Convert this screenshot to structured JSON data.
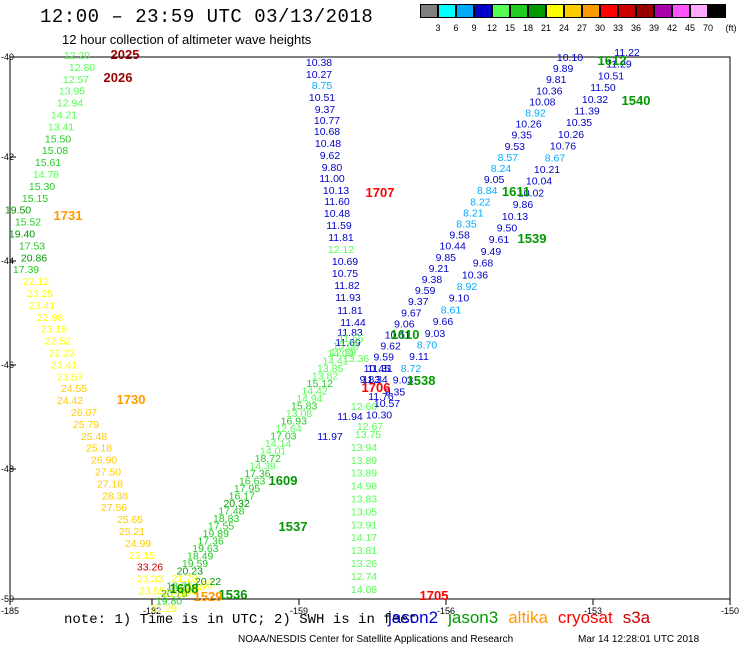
{
  "title": "12:00 – 23:59 UTC 03/13/2018",
  "subtitle": "12 hour collection of altimeter wave heights",
  "scale": {
    "unit": "(ft)",
    "swatches": [
      {
        "c": "#7f7f7f",
        "l": "3"
      },
      {
        "c": "#00ffff",
        "l": "6"
      },
      {
        "c": "#00aaff",
        "l": "9"
      },
      {
        "c": "#0000c8",
        "l": "12"
      },
      {
        "c": "#55ff55",
        "l": "15"
      },
      {
        "c": "#22cc22",
        "l": "18"
      },
      {
        "c": "#009900",
        "l": "21"
      },
      {
        "c": "#ffff00",
        "l": "24"
      },
      {
        "c": "#ffcc00",
        "l": "27"
      },
      {
        "c": "#ff9900",
        "l": "30"
      },
      {
        "c": "#ff0000",
        "l": "33"
      },
      {
        "c": "#cc0000",
        "l": "36"
      },
      {
        "c": "#990000",
        "l": "39"
      },
      {
        "c": "#aa00aa",
        "l": "42"
      },
      {
        "c": "#ff55ff",
        "l": "45"
      },
      {
        "c": "#ffaaff",
        "l": "70"
      },
      {
        "c": "#000000",
        "l": ""
      }
    ]
  },
  "axes": {
    "lon_ticks": [
      "-185",
      "-182",
      "-159",
      "-156",
      "-153",
      "-150"
    ],
    "lat_ticks": [
      "-40",
      "-42",
      "-44",
      "-46",
      "-48",
      "-50"
    ]
  },
  "note": "note: 1) Time is in UTC; 2) SWH is in feet",
  "legend": [
    {
      "name": "jason2",
      "color": "#0000cc"
    },
    {
      "name": "jason3",
      "color": "#009900"
    },
    {
      "name": "altika",
      "color": "#ff9900"
    },
    {
      "name": "cryosat",
      "color": "#ff0000"
    },
    {
      "name": "s3a",
      "color": "#cc0000"
    }
  ],
  "footer": "NOAA/NESDIS Center for Satellite Applications and Research",
  "footer_timestamp": "Mar 14 12:28:01 UTC 2018",
  "tracks": [
    {
      "id": "left-swath",
      "c": [
        [
          "12.20",
          "#55ff55"
        ],
        [
          "12.80",
          "#55ff55"
        ],
        [
          "12.57",
          "#55ff55"
        ],
        [
          "13.95",
          "#55ff55"
        ],
        [
          "12.94",
          "#55ff55"
        ],
        [
          "14.21",
          "#55ff55"
        ],
        [
          "13.41",
          "#55ff55"
        ],
        [
          "15.50",
          "#22cc22"
        ],
        [
          "15.08",
          "#22cc22"
        ],
        [
          "15.61",
          "#22cc22"
        ],
        [
          "14.78",
          "#55ff55"
        ],
        [
          "15.30",
          "#22cc22"
        ],
        [
          "15.15",
          "#22cc22"
        ],
        [
          "19.50",
          "#009900"
        ],
        [
          "15.52",
          "#22cc22"
        ],
        [
          "19.40",
          "#009900"
        ],
        [
          "17.53",
          "#22cc22"
        ],
        [
          "20.86",
          "#009900"
        ],
        [
          "17.39",
          "#22cc22"
        ],
        [
          "22.12",
          "#ffff00"
        ],
        [
          "23.25",
          "#ffff00"
        ],
        [
          "23.41",
          "#ffff00"
        ],
        [
          "22.98",
          "#ffff00"
        ],
        [
          "23.19",
          "#ffff00"
        ],
        [
          "22.52",
          "#ffff00"
        ],
        [
          "22.23",
          "#ffff00"
        ],
        [
          "23.41",
          "#ffff00"
        ],
        [
          "23.57",
          "#ffff00"
        ],
        [
          "24.55",
          "#ffcc00"
        ],
        [
          "24.42",
          "#ffcc00"
        ],
        [
          "26.07",
          "#ffcc00"
        ],
        [
          "25.79",
          "#ffcc00"
        ],
        [
          "25.48",
          "#ffcc00"
        ],
        [
          "25.18",
          "#ffcc00"
        ],
        [
          "26.90",
          "#ffcc00"
        ],
        [
          "27.50",
          "#ffcc00"
        ],
        [
          "27.18",
          "#ffcc00"
        ],
        [
          "28.38",
          "#ffcc00"
        ],
        [
          "27.56",
          "#ffcc00"
        ],
        [
          "25.65",
          "#ffcc00"
        ],
        [
          "25.21",
          "#ffcc00"
        ],
        [
          "24.99",
          "#ffcc00"
        ],
        [
          "23.15",
          "#ffff00"
        ],
        [
          "33.26",
          "#cc0000"
        ],
        [
          "23.33",
          "#ffff00"
        ],
        [
          "23.55",
          "#ffff00"
        ]
      ]
    },
    {
      "id": "blue-track-a",
      "c": [
        [
          "10.38",
          "#0000c8"
        ],
        [
          "10.27",
          "#0000c8"
        ],
        [
          "8.75",
          "#00aaff"
        ],
        [
          "10.51",
          "#0000c8"
        ],
        [
          "9.37",
          "#0000c8"
        ],
        [
          "10.77",
          "#0000c8"
        ],
        [
          "10.68",
          "#0000c8"
        ],
        [
          "10.48",
          "#0000c8"
        ],
        [
          "9.62",
          "#0000c8"
        ],
        [
          "9.80",
          "#0000c8"
        ],
        [
          "11.00",
          "#0000c8"
        ],
        [
          "10.13",
          "#0000c8"
        ],
        [
          "11.60",
          "#0000c8"
        ],
        [
          "10.48",
          "#0000c8"
        ],
        [
          "11.59",
          "#0000c8"
        ],
        [
          "11.81",
          "#0000c8"
        ],
        [
          "12.12",
          "#55ff55"
        ],
        [
          "10.69",
          "#0000c8"
        ],
        [
          "10.75",
          "#0000c8"
        ],
        [
          "11.82",
          "#0000c8"
        ],
        [
          "11.93",
          "#0000c8"
        ],
        [
          "11.81",
          "#0000c8"
        ],
        [
          "11.44",
          "#0000c8"
        ],
        [
          "11.83",
          "#0000c8"
        ],
        [
          "11.69",
          "#0000c8"
        ],
        [
          "12.59",
          "#55ff55"
        ],
        [
          "13.36",
          "#55ff55"
        ],
        [
          "11.31",
          "#0000c8"
        ],
        [
          "11.34",
          "#0000c8"
        ],
        [
          "11.76",
          "#0000c8"
        ],
        [
          "12.60",
          "#55ff55"
        ],
        [
          "11.94",
          "#0000c8"
        ],
        [
          "12.67",
          "#55ff55"
        ],
        [
          "11.97",
          "#0000c8"
        ]
      ]
    },
    {
      "id": "green-track",
      "c": [
        [
          "13.75",
          "#55ff55"
        ],
        [
          "13.94",
          "#55ff55"
        ],
        [
          "13.89",
          "#55ff55"
        ],
        [
          "13.89",
          "#55ff55"
        ],
        [
          "14.98",
          "#55ff55"
        ],
        [
          "13.83",
          "#55ff55"
        ],
        [
          "13.05",
          "#55ff55"
        ],
        [
          "13.91",
          "#55ff55"
        ],
        [
          "14.17",
          "#55ff55"
        ],
        [
          "13.81",
          "#55ff55"
        ],
        [
          "13.26",
          "#55ff55"
        ],
        [
          "12.74",
          "#55ff55"
        ],
        [
          "14.08",
          "#55ff55"
        ]
      ]
    },
    {
      "id": "diag-1",
      "c": [
        [
          "10.10",
          "#0000c8"
        ],
        [
          "9.89",
          "#0000c8"
        ],
        [
          "9.81",
          "#0000c8"
        ],
        [
          "10.36",
          "#0000c8"
        ],
        [
          "10.08",
          "#0000c8"
        ],
        [
          "8.92",
          "#00aaff"
        ],
        [
          "10.26",
          "#0000c8"
        ],
        [
          "9.35",
          "#0000c8"
        ],
        [
          "9.53",
          "#0000c8"
        ],
        [
          "8.57",
          "#00aaff"
        ],
        [
          "8.24",
          "#00aaff"
        ],
        [
          "9.05",
          "#0000c8"
        ],
        [
          "8.84",
          "#00aaff"
        ],
        [
          "8.22",
          "#00aaff"
        ],
        [
          "8.21",
          "#00aaff"
        ],
        [
          "8.35",
          "#00aaff"
        ],
        [
          "9.58",
          "#0000c8"
        ],
        [
          "10.44",
          "#0000c8"
        ],
        [
          "9.85",
          "#0000c8"
        ],
        [
          "9.21",
          "#0000c8"
        ],
        [
          "9.38",
          "#0000c8"
        ],
        [
          "9.59",
          "#0000c8"
        ],
        [
          "9.37",
          "#0000c8"
        ],
        [
          "9.67",
          "#0000c8"
        ],
        [
          "9.06",
          "#0000c8"
        ],
        [
          "10.11",
          "#0000c8"
        ],
        [
          "9.62",
          "#0000c8"
        ],
        [
          "9.59",
          "#0000c8"
        ],
        [
          "10.45",
          "#0000c8"
        ],
        [
          "9.83",
          "#0000c8"
        ]
      ]
    },
    {
      "id": "diag-2",
      "c": [
        [
          "11.22",
          "#0000c8"
        ],
        [
          "11.29",
          "#0000c8"
        ],
        [
          "10.51",
          "#0000c8"
        ],
        [
          "11.50",
          "#0000c8"
        ],
        [
          "10.32",
          "#0000c8"
        ],
        [
          "11.39",
          "#0000c8"
        ],
        [
          "10.35",
          "#0000c8"
        ],
        [
          "10.26",
          "#0000c8"
        ],
        [
          "10.76",
          "#0000c8"
        ],
        [
          "8.67",
          "#00aaff"
        ],
        [
          "10.21",
          "#0000c8"
        ],
        [
          "10.04",
          "#0000c8"
        ],
        [
          "10.02",
          "#0000c8"
        ],
        [
          "9.86",
          "#0000c8"
        ],
        [
          "10.13",
          "#0000c8"
        ],
        [
          "9.50",
          "#0000c8"
        ],
        [
          "9.61",
          "#0000c8"
        ],
        [
          "9.49",
          "#0000c8"
        ],
        [
          "9.68",
          "#0000c8"
        ],
        [
          "10.36",
          "#0000c8"
        ],
        [
          "8.92",
          "#00aaff"
        ],
        [
          "9.10",
          "#0000c8"
        ],
        [
          "8.61",
          "#00aaff"
        ],
        [
          "9.66",
          "#0000c8"
        ],
        [
          "9.03",
          "#0000c8"
        ],
        [
          "8.70",
          "#00aaff"
        ],
        [
          "9.11",
          "#0000c8"
        ],
        [
          "8.72",
          "#00aaff"
        ],
        [
          "9.03",
          "#0000c8"
        ],
        [
          "9.35",
          "#0000c8"
        ],
        [
          "10.57",
          "#0000c8"
        ],
        [
          "10.30",
          "#0000c8"
        ]
      ]
    },
    {
      "id": "green-diag-upper",
      "c": [
        [
          "11.55",
          "#55ff55"
        ],
        [
          "13.08",
          "#55ff55"
        ],
        [
          "14.09",
          "#55ff55"
        ],
        [
          "14.41",
          "#55ff55"
        ],
        [
          "13.85",
          "#55ff55"
        ],
        [
          "13.82",
          "#55ff55"
        ],
        [
          "15.12",
          "#22cc22"
        ],
        [
          "14.42",
          "#55ff55"
        ],
        [
          "14.94",
          "#55ff55"
        ],
        [
          "15.83",
          "#22cc22"
        ],
        [
          "13.08",
          "#55ff55"
        ],
        [
          "16.93",
          "#22cc22"
        ],
        [
          "12.64",
          "#55ff55"
        ],
        [
          "17.03",
          "#22cc22"
        ],
        [
          "14.14",
          "#55ff55"
        ],
        [
          "14.01",
          "#55ff55"
        ],
        [
          "18.72",
          "#22cc22"
        ],
        [
          "14.39",
          "#55ff55"
        ],
        [
          "17.36",
          "#22cc22"
        ],
        [
          "16.63",
          "#22cc22"
        ],
        [
          "17.95",
          "#22cc22"
        ],
        [
          "16.17",
          "#22cc22"
        ],
        [
          "20.32",
          "#009900"
        ],
        [
          "17.48",
          "#22cc22"
        ],
        [
          "18.83",
          "#22cc22"
        ],
        [
          "17.55",
          "#22cc22"
        ],
        [
          "19.89",
          "#22cc22"
        ],
        [
          "17.36",
          "#22cc22"
        ],
        [
          "19.63",
          "#22cc22"
        ],
        [
          "18.49",
          "#22cc22"
        ],
        [
          "19.59",
          "#22cc22"
        ],
        [
          "20.23",
          "#009900"
        ],
        [
          "21.78",
          "#ffff00"
        ],
        [
          "18.71",
          "#22cc22"
        ],
        [
          "20.76",
          "#009900"
        ],
        [
          "19.80",
          "#22cc22"
        ],
        [
          "21.29",
          "#ffff00"
        ]
      ]
    },
    {
      "id": "orange-misc",
      "c": [
        [
          "21.36",
          "#ffff00"
        ],
        [
          "21.62",
          "#ffff00"
        ],
        [
          "21.60",
          "#ffff00"
        ],
        [
          "22.33",
          "#ffff00"
        ],
        [
          "20.22",
          "#009900"
        ]
      ]
    }
  ],
  "time_labels": [
    {
      "t": "2025",
      "color": "#990000"
    },
    {
      "t": "2026",
      "color": "#990000"
    },
    {
      "t": "1731",
      "color": "#ff9900"
    },
    {
      "t": "1730",
      "color": "#ff9900"
    },
    {
      "t": "1707",
      "color": "#ff0000"
    },
    {
      "t": "1706",
      "color": "#ff0000"
    },
    {
      "t": "1705",
      "color": "#ff0000"
    },
    {
      "t": "1612",
      "color": "#009900"
    },
    {
      "t": "1540",
      "color": "#009900"
    },
    {
      "t": "1611",
      "color": "#009900"
    },
    {
      "t": "1539",
      "color": "#009900"
    },
    {
      "t": "1610",
      "color": "#009900"
    },
    {
      "t": "1538",
      "color": "#009900"
    },
    {
      "t": "1609",
      "color": "#009900"
    },
    {
      "t": "1537",
      "color": "#009900"
    },
    {
      "t": "1608",
      "color": "#009900"
    },
    {
      "t": "1536",
      "color": "#009900"
    },
    {
      "t": "1529",
      "color": "#ff9900"
    }
  ]
}
